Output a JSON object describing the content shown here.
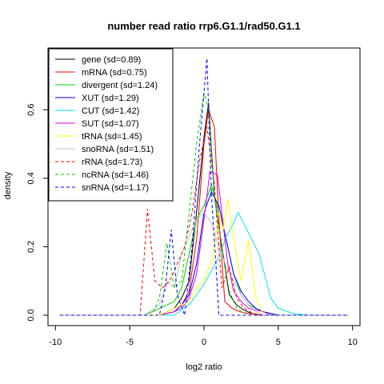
{
  "chart_data": {
    "type": "line",
    "title": "number read ratio rrp6.G1.1/rad50.G1.1",
    "xlabel": "log2 ratio",
    "ylabel": "density",
    "xlim": [
      -10.5,
      10.5
    ],
    "ylim": [
      0,
      0.75
    ],
    "xticks": [
      -10,
      -5,
      0,
      5,
      10
    ],
    "yticks": [
      0.0,
      0.2,
      0.4,
      0.6
    ],
    "grid": false,
    "legend_position": "top-left",
    "series": [
      {
        "name": "gene (sd=0.89)",
        "color": "#000000",
        "dash": false,
        "x": [
          -9.7,
          -3.0,
          -2.5,
          -2.0,
          -1.5,
          -1.0,
          -0.5,
          0.0,
          0.3,
          0.7,
          1.2,
          1.7,
          2.2,
          2.7,
          3.2,
          4.0,
          5.0,
          9.7
        ],
        "y": [
          0,
          0,
          0.01,
          0.02,
          0.05,
          0.1,
          0.3,
          0.52,
          0.62,
          0.35,
          0.2,
          0.06,
          0.03,
          0.015,
          0.005,
          0,
          0,
          0
        ]
      },
      {
        "name": "mRNA (sd=0.75)",
        "color": "#ff0000",
        "dash": false,
        "x": [
          -9.7,
          -3.0,
          -2.0,
          -1.5,
          -1.0,
          -0.5,
          0.0,
          0.3,
          0.7,
          1.0,
          1.4,
          1.9,
          2.4,
          3.0,
          4.0,
          9.7
        ],
        "y": [
          0,
          0,
          0.01,
          0.03,
          0.07,
          0.22,
          0.5,
          0.6,
          0.55,
          0.28,
          0.04,
          0.02,
          0.01,
          0.005,
          0,
          0
        ]
      },
      {
        "name": "divergent (sd=1.24)",
        "color": "#00cd00",
        "dash": false,
        "x": [
          -9.7,
          -4.0,
          -3.0,
          -2.0,
          -1.5,
          -1.0,
          -0.5,
          0.0,
          0.5,
          1.0,
          1.5,
          2.0,
          2.5,
          3.0,
          4.0,
          5.0,
          9.7
        ],
        "y": [
          0,
          0,
          0.02,
          0.04,
          0.08,
          0.18,
          0.28,
          0.32,
          0.38,
          0.3,
          0.22,
          0.12,
          0.06,
          0.03,
          0.01,
          0,
          0
        ]
      },
      {
        "name": "XUT (sd=1.29)",
        "color": "#0000ff",
        "dash": false,
        "x": [
          -9.7,
          -3.0,
          -2.0,
          -1.5,
          -1.0,
          -0.5,
          0.0,
          0.5,
          1.0,
          1.5,
          2.0,
          2.5,
          3.0,
          3.5,
          4.0,
          5.0,
          9.7
        ],
        "y": [
          0,
          0,
          0.01,
          0.03,
          0.06,
          0.15,
          0.3,
          0.36,
          0.32,
          0.22,
          0.12,
          0.07,
          0.04,
          0.02,
          0.01,
          0,
          0
        ]
      },
      {
        "name": "CUT (sd=1.42)",
        "color": "#00e5ee",
        "dash": false,
        "x": [
          -9.7,
          -2.0,
          -1.0,
          0.0,
          0.5,
          1.0,
          1.5,
          2.0,
          2.3,
          3.0,
          3.7,
          4.5,
          5.0,
          6.0,
          7.0,
          9.7
        ],
        "y": [
          0,
          0,
          0.03,
          0.09,
          0.13,
          0.17,
          0.23,
          0.27,
          0.3,
          0.24,
          0.18,
          0.05,
          0.02,
          0.005,
          0,
          0
        ]
      },
      {
        "name": "SUT (sd=1.07)",
        "color": "#e000e0",
        "dash": false,
        "x": [
          -9.7,
          -3.0,
          -2.0,
          -1.5,
          -1.0,
          -0.5,
          0.0,
          0.4,
          0.9,
          1.2,
          1.6,
          2.0,
          2.5,
          3.0,
          4.0,
          4.5,
          9.7
        ],
        "y": [
          0,
          0,
          0.01,
          0.02,
          0.05,
          0.12,
          0.28,
          0.42,
          0.41,
          0.3,
          0.15,
          0.07,
          0.04,
          0.02,
          0.01,
          0,
          0
        ]
      },
      {
        "name": "tRNA (sd=1.45)",
        "color": "#ffff00",
        "dash": false,
        "x": [
          -9.7,
          -3.0,
          -2.0,
          -1.0,
          -0.5,
          0.0,
          0.6,
          1.0,
          1.3,
          1.6,
          2.0,
          2.5,
          3.0,
          3.5,
          4.0,
          9.7
        ],
        "y": [
          0,
          0,
          0.02,
          0.04,
          0.08,
          0.1,
          0.17,
          0.3,
          0.25,
          0.34,
          0.22,
          0.1,
          0.22,
          0.05,
          0,
          0
        ]
      },
      {
        "name": "snoRNA (sd=1.51)",
        "color": "#c0c0c0",
        "dash": false,
        "x": [
          -9.7,
          -4.0,
          -3.0,
          -2.5,
          -2.0,
          -1.5,
          -1.0,
          -0.5,
          0.0,
          0.5,
          1.0,
          1.5,
          2.0,
          2.5,
          3.0,
          3.5,
          4.0,
          9.7
        ],
        "y": [
          0,
          0,
          0.03,
          0.1,
          0.08,
          0.18,
          0.23,
          0.28,
          0.3,
          0.27,
          0.2,
          0.14,
          0.1,
          0.06,
          0.03,
          0.01,
          0,
          0
        ]
      },
      {
        "name": "rRNA (sd=1.73)",
        "color": "#ff0000",
        "dash": true,
        "x": [
          -9.7,
          -4.3,
          -3.8,
          -3.3,
          -2.8,
          -2.3,
          -1.8,
          -1.3,
          -0.8,
          -0.3,
          0.2,
          0.7,
          1.2,
          1.7,
          2.2,
          2.7,
          3.5,
          9.7
        ],
        "y": [
          0,
          0,
          0.31,
          0.1,
          0.08,
          0.1,
          0.15,
          0.2,
          0.3,
          0.45,
          0.55,
          0.38,
          0.08,
          0.14,
          0.05,
          0.02,
          0,
          0
        ]
      },
      {
        "name": "ncRNA (sd=1.46)",
        "color": "#00cd00",
        "dash": true,
        "x": [
          -9.7,
          -3.5,
          -3.0,
          -2.5,
          -2.0,
          -1.5,
          -1.0,
          -0.5,
          0.0,
          0.3,
          0.7,
          1.2,
          1.7,
          2.2,
          3.0,
          9.7
        ],
        "y": [
          0,
          0,
          0.05,
          0.21,
          0.08,
          0.1,
          0.3,
          0.5,
          0.65,
          0.6,
          0.35,
          0.2,
          0.07,
          0.02,
          0,
          0
        ]
      },
      {
        "name": "snRNA (sd=1.17)",
        "color": "#0000ff",
        "dash": true,
        "x": [
          -9.7,
          -3.0,
          -2.6,
          -2.2,
          -1.8,
          -1.3,
          -0.8,
          -0.3,
          0.2,
          0.5,
          0.8,
          1.0,
          9.7
        ],
        "y": [
          0,
          0,
          0.08,
          0.25,
          0.06,
          0,
          0.2,
          0.5,
          0.75,
          0.35,
          0.15,
          0,
          0
        ]
      }
    ]
  }
}
